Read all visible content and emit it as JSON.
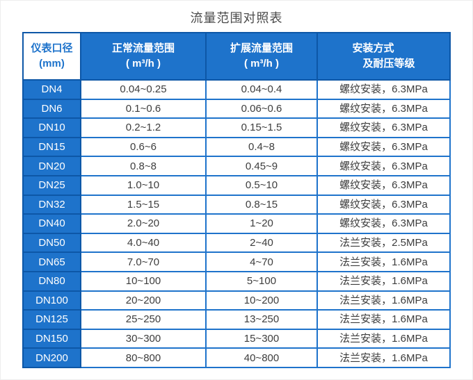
{
  "chart_data": {
    "type": "table",
    "title": "流量范围对照表",
    "columns": [
      {
        "id": "diameter",
        "line1": "仪表口径",
        "line2": "(mm)"
      },
      {
        "id": "normal-range",
        "line1": "正常流量范围",
        "line2": "( m³/h )"
      },
      {
        "id": "extended-range",
        "line1": "扩展流量范围",
        "line2": "( m³/h )"
      },
      {
        "id": "installation",
        "line1": "安装方式",
        "line2": "及耐压等级"
      }
    ],
    "rows": [
      [
        "DN4",
        "0.04~0.25",
        "0.04~0.4",
        "螺纹安装，6.3MPa"
      ],
      [
        "DN6",
        "0.1~0.6",
        "0.06~0.6",
        "螺纹安装，6.3MPa"
      ],
      [
        "DN10",
        "0.2~1.2",
        "0.15~1.5",
        "螺纹安装，6.3MPa"
      ],
      [
        "DN15",
        "0.6~6",
        "0.4~8",
        "螺纹安装，6.3MPa"
      ],
      [
        "DN20",
        "0.8~8",
        "0.45~9",
        "螺纹安装，6.3MPa"
      ],
      [
        "DN25",
        "1.0~10",
        "0.5~10",
        "螺纹安装，6.3MPa"
      ],
      [
        "DN32",
        "1.5~15",
        "0.8~15",
        "螺纹安装，6.3MPa"
      ],
      [
        "DN40",
        "2.0~20",
        "1~20",
        "螺纹安装，6.3MPa"
      ],
      [
        "DN50",
        "4.0~40",
        "2~40",
        "法兰安装，2.5MPa"
      ],
      [
        "DN65",
        "7.0~70",
        "4~70",
        "法兰安装，1.6MPa"
      ],
      [
        "DN80",
        "10~100",
        "5~100",
        "法兰安装，1.6MPa"
      ],
      [
        "DN100",
        "20~200",
        "10~200",
        "法兰安装，1.6MPa"
      ],
      [
        "DN125",
        "25~250",
        "13~250",
        "法兰安装，1.6MPa"
      ],
      [
        "DN150",
        "30~300",
        "15~300",
        "法兰安装，1.6MPa"
      ],
      [
        "DN200",
        "80~800",
        "40~800",
        "法兰安装，1.6MPa"
      ]
    ],
    "colors": {
      "header_blue": "#1E73CB",
      "dark_blue_border": "#0D57A7",
      "cell_text": "#3D3D3D",
      "header_text": "#FFFFFF",
      "corner_cell_bg": "#FFFFFF",
      "corner_cell_text": "#1E73CB",
      "title_text": "#4A4A4A"
    }
  }
}
